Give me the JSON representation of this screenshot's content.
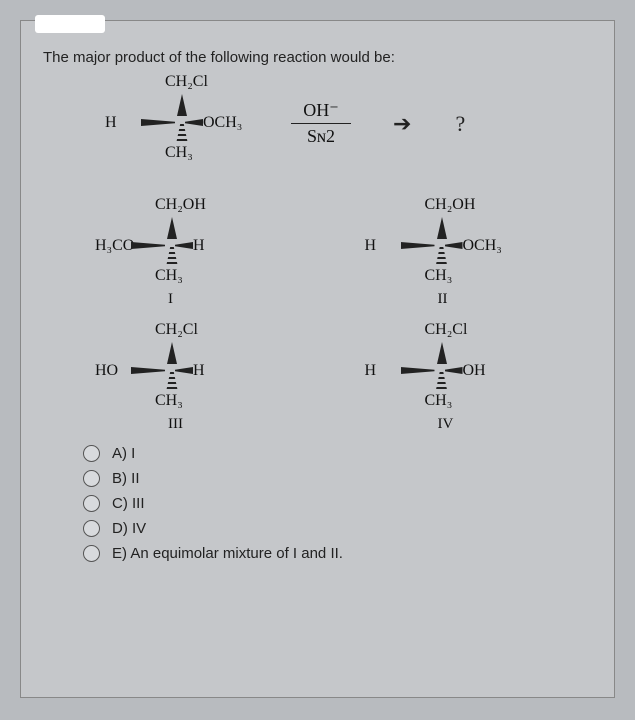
{
  "question": "The major product of the following reaction would be:",
  "reactant": {
    "top": "CH₂Cl",
    "left": "H",
    "right": "OCH₃",
    "bottom": "CH₃"
  },
  "reagent_top": "OH⁻",
  "reagent_bottom": "Sɴ2",
  "product_mark": "?",
  "structures": [
    {
      "top": "CH₂OH",
      "left": "H₃CO",
      "right": "H",
      "bottom": "CH₃",
      "label": "I"
    },
    {
      "top": "CH₂OH",
      "left": "H",
      "right": "OCH₃",
      "bottom": "CH₃",
      "label": "II"
    },
    {
      "top": "CH₂Cl",
      "left": "HO",
      "right": "H",
      "bottom": "CH₃",
      "label": "III"
    },
    {
      "top": "CH₂Cl",
      "left": "H",
      "right": "OH",
      "bottom": "CH₃",
      "label": "IV"
    }
  ],
  "options": [
    "A) I",
    "B) II",
    "C) III",
    "D) IV",
    "E) An equimolar mixture of I and II."
  ],
  "colors": {
    "page_bg": "#c5c7ca",
    "outer_bg": "#b8bbbf",
    "text": "#222222"
  }
}
